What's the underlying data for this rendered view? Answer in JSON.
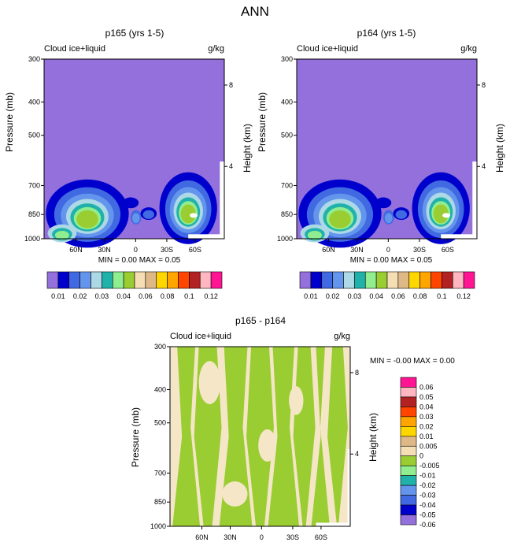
{
  "chart_data": [
    {
      "type": "contour",
      "title": "p165 (yrs 1-5)",
      "left_subtitle": "Cloud ice+liquid",
      "right_subtitle": "g/kg",
      "ylabel": "Pressure (mb)",
      "ylabel_right": "Height (km)",
      "ylim": [
        1000,
        300
      ],
      "pressure_ticks": [
        300,
        400,
        500,
        700,
        850,
        1000
      ],
      "height_ticks": [
        "8",
        "4"
      ],
      "lat_ticks": [
        "60N",
        "30N",
        "0",
        "30S",
        "60S"
      ],
      "stats": "MIN =   0.00   MAX =   0.05",
      "colorbar_labels": [
        "0.01",
        "0.02",
        "0.03",
        "0.04",
        "0.06",
        "0.08",
        "0.1",
        "0.12"
      ]
    },
    {
      "type": "contour",
      "title": "p164 (yrs 1-5)",
      "left_subtitle": "Cloud ice+liquid",
      "right_subtitle": "g/kg",
      "ylabel": "Pressure (mb)",
      "ylabel_right": "Height (km)",
      "ylim": [
        1000,
        300
      ],
      "pressure_ticks": [
        300,
        400,
        500,
        700,
        850,
        1000
      ],
      "height_ticks": [
        "8",
        "4"
      ],
      "lat_ticks": [
        "60N",
        "30N",
        "0",
        "30S",
        "60S"
      ],
      "stats": "MIN =   0.00   MAX =   0.05",
      "colorbar_labels": [
        "0.01",
        "0.02",
        "0.03",
        "0.04",
        "0.06",
        "0.08",
        "0.1",
        "0.12"
      ]
    },
    {
      "type": "contour",
      "title": "p165 - p164",
      "left_subtitle": "Cloud ice+liquid",
      "right_subtitle": "g/kg",
      "ylabel": "Pressure (mb)",
      "ylabel_right": "Height (km)",
      "ylim": [
        1000,
        300
      ],
      "pressure_ticks": [
        300,
        400,
        500,
        700,
        850,
        1000
      ],
      "height_ticks": [
        "8",
        "4"
      ],
      "lat_ticks": [
        "60N",
        "30N",
        "0",
        "30S",
        "60S"
      ],
      "stats": "MIN =  -0.00   MAX =   0.00",
      "colorbar_labels": [
        "0.06",
        "0.05",
        "0.04",
        "0.03",
        "0.02",
        "0.01",
        "0.005",
        "0",
        "-0.005",
        "-0.01",
        "-0.02",
        "-0.03",
        "-0.04",
        "-0.05",
        "-0.06"
      ]
    }
  ],
  "figure_title": "ANN",
  "colors": {
    "abs_levels": [
      "#9370db",
      "#0000cd",
      "#4169e1",
      "#6495ed",
      "#add8e6",
      "#20b2aa",
      "#90ee90",
      "#9acd32",
      "#f5deb3",
      "#deb887",
      "#ffd700",
      "#ffa500",
      "#ff4500",
      "#b22222",
      "#ffb6c1",
      "#ff1493"
    ],
    "diff_levels": [
      "#ff1493",
      "#ffb6c1",
      "#b22222",
      "#ff4500",
      "#ffa500",
      "#ffd700",
      "#deb887",
      "#f5deb3",
      "#9acd32",
      "#90ee90",
      "#20b2aa",
      "#6495ed",
      "#4169e1",
      "#0000cd",
      "#9370db"
    ],
    "background_field": "#9370db",
    "diff_pos": "#f5e6c8",
    "diff_neg": "#9acd32"
  }
}
